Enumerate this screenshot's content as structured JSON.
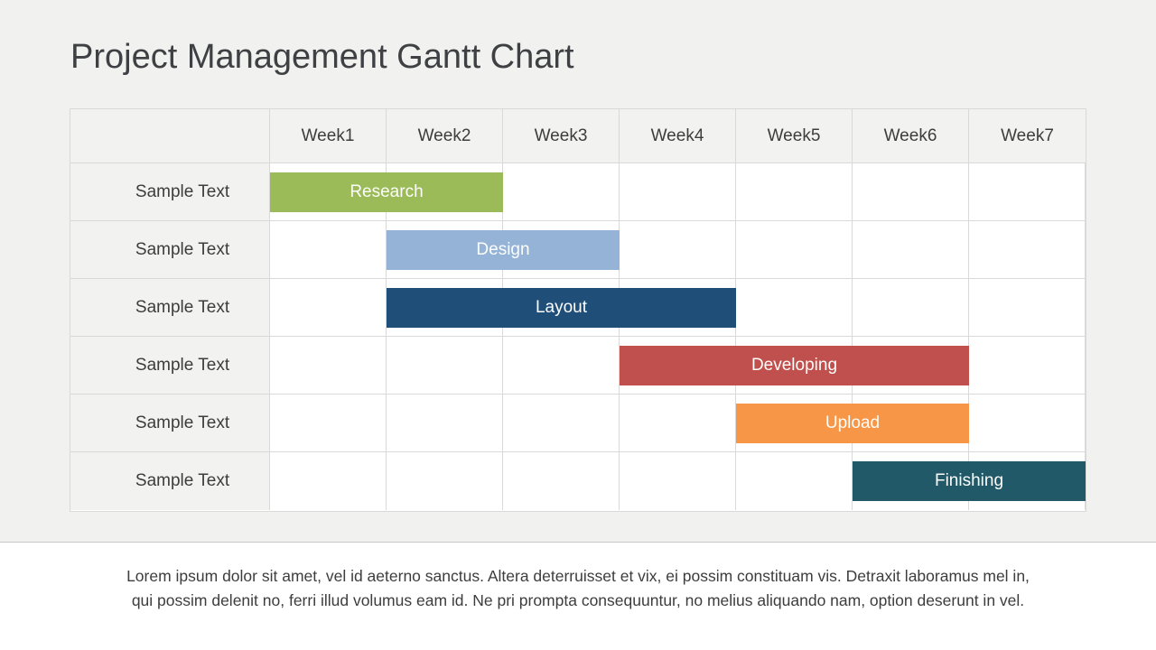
{
  "title": "Project Management Gantt Chart",
  "gantt": {
    "num_weeks": 7,
    "week_headers": [
      "Week1",
      "Week2",
      "Week3",
      "Week4",
      "Week5",
      "Week6",
      "Week7"
    ],
    "rows": [
      {
        "label": "Sample Text",
        "task": "Research",
        "start_week": 1,
        "end_week": 2,
        "color": "#9BBB59"
      },
      {
        "label": "Sample Text",
        "task": "Design",
        "start_week": 2,
        "end_week": 3,
        "color": "#95B3D7"
      },
      {
        "label": "Sample Text",
        "task": "Layout",
        "start_week": 2,
        "end_week": 4,
        "color": "#1F4E79"
      },
      {
        "label": "Sample Text",
        "task": "Developing",
        "start_week": 4,
        "end_week": 6,
        "color": "#C0504D"
      },
      {
        "label": "Sample Text",
        "task": "Upload",
        "start_week": 5,
        "end_week": 6,
        "color": "#F79646"
      },
      {
        "label": "Sample Text",
        "task": "Finishing",
        "start_week": 6,
        "end_week": 7,
        "color": "#215968"
      }
    ]
  },
  "footer": {
    "line1": "Lorem ipsum dolor sit amet, vel id aeterno sanctus. Altera deterruisset et vix, ei possim constituam vis. Detraxit laboramus mel in,",
    "line2": "qui possim delenit no, ferri illud volumus eam id. Ne pri prompta consequuntur, no melius aliquando nam, option deserunt in vel."
  },
  "chart_data": {
    "type": "bar",
    "subtype": "gantt",
    "title": "Project Management Gantt Chart",
    "x_axis_label": "",
    "x_categories": [
      "Week1",
      "Week2",
      "Week3",
      "Week4",
      "Week5",
      "Week6",
      "Week7"
    ],
    "row_labels": [
      "Sample Text",
      "Sample Text",
      "Sample Text",
      "Sample Text",
      "Sample Text",
      "Sample Text"
    ],
    "series": [
      {
        "name": "Research",
        "start_week": 1,
        "end_week": 2,
        "duration_weeks": 2,
        "color": "#9BBB59"
      },
      {
        "name": "Design",
        "start_week": 2,
        "end_week": 3,
        "duration_weeks": 2,
        "color": "#95B3D7"
      },
      {
        "name": "Layout",
        "start_week": 2,
        "end_week": 4,
        "duration_weeks": 3,
        "color": "#1F4E79"
      },
      {
        "name": "Developing",
        "start_week": 4,
        "end_week": 6,
        "duration_weeks": 3,
        "color": "#C0504D"
      },
      {
        "name": "Upload",
        "start_week": 5,
        "end_week": 6,
        "duration_weeks": 2,
        "color": "#F79646"
      },
      {
        "name": "Finishing",
        "start_week": 6,
        "end_week": 7,
        "duration_weeks": 2,
        "color": "#215968"
      }
    ],
    "grid": true,
    "legend": false
  }
}
